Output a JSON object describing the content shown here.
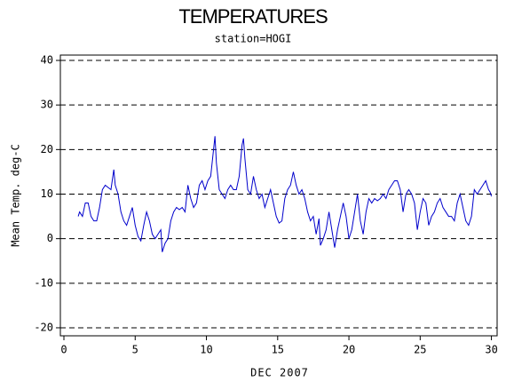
{
  "chart_data": {
    "type": "line",
    "title": "TEMPERATURES",
    "subtitle": "station=HOGI",
    "x_label": "DEC 2007",
    "y_label": "Mean Temp. deg-C",
    "xlim": [
      -0.25,
      30.4
    ],
    "xticks": [
      0,
      5,
      10,
      15,
      20,
      25,
      30
    ],
    "ylim": [
      -21.8,
      41.2
    ],
    "yticks": [
      -20,
      -10,
      0,
      10,
      20,
      30,
      40
    ],
    "grid": true,
    "series": [
      {
        "color": "#0000cc",
        "x": [
          1,
          1.1,
          1.3,
          1.5,
          1.7,
          1.9,
          2.1,
          2.3,
          2.5,
          2.7,
          2.9,
          3.1,
          3.3,
          3.5,
          3.6,
          3.8,
          4.0,
          4.2,
          4.4,
          4.6,
          4.8,
          5.0,
          5.2,
          5.4,
          5.6,
          5.8,
          6.0,
          6.2,
          6.4,
          6.6,
          6.8,
          6.9,
          7.1,
          7.3,
          7.5,
          7.7,
          7.9,
          8.1,
          8.3,
          8.5,
          8.7,
          8.9,
          9.1,
          9.3,
          9.5,
          9.7,
          9.9,
          10.1,
          10.3,
          10.5,
          10.6,
          10.7,
          10.9,
          11.1,
          11.3,
          11.5,
          11.7,
          11.9,
          12.1,
          12.3,
          12.5,
          12.6,
          12.7,
          12.9,
          13.1,
          13.3,
          13.5,
          13.7,
          13.9,
          14.1,
          14.3,
          14.5,
          14.7,
          14.9,
          15.1,
          15.3,
          15.5,
          15.7,
          15.9,
          16.1,
          16.3,
          16.5,
          16.7,
          16.9,
          17.1,
          17.3,
          17.5,
          17.7,
          17.9,
          18.0,
          18.2,
          18.4,
          18.6,
          18.8,
          19.0,
          19.2,
          19.4,
          19.6,
          19.8,
          20.0,
          20.2,
          20.4,
          20.6,
          20.8,
          21.0,
          21.2,
          21.4,
          21.6,
          21.8,
          22.0,
          22.2,
          22.4,
          22.6,
          22.8,
          23.0,
          23.2,
          23.4,
          23.6,
          23.8,
          24.0,
          24.2,
          24.4,
          24.6,
          24.8,
          25.0,
          25.2,
          25.4,
          25.6,
          25.8,
          26.0,
          26.2,
          26.4,
          26.6,
          26.8,
          27.0,
          27.2,
          27.4,
          27.6,
          27.8,
          28.0,
          28.2,
          28.4,
          28.6,
          28.8,
          29.0,
          29.2,
          29.4,
          29.6,
          29.8,
          29.9,
          30.0
        ],
        "values": [
          5,
          6,
          5,
          8,
          8,
          5,
          4,
          4,
          7,
          11,
          12,
          11.5,
          11,
          15.5,
          12,
          10,
          6,
          4,
          3,
          5,
          7,
          3,
          0.5,
          -0.5,
          3,
          6,
          4,
          1,
          0,
          1,
          2,
          -3,
          -1,
          0,
          4,
          6,
          7,
          6.5,
          7,
          6,
          12,
          9,
          7,
          8,
          12,
          13,
          11,
          13,
          14,
          20,
          23,
          17,
          11,
          10,
          9,
          11,
          12,
          11,
          11,
          14,
          21,
          22.5,
          18,
          11,
          10,
          14,
          11,
          9,
          10,
          7,
          9,
          11,
          8,
          5,
          3.5,
          4,
          9,
          11,
          12,
          15,
          12,
          10,
          11,
          9,
          6,
          4,
          5,
          1,
          4.5,
          -1.5,
          0,
          2,
          6,
          2,
          -2,
          2,
          5,
          8,
          5,
          0,
          2,
          6,
          10,
          4,
          1,
          6,
          9,
          8,
          9,
          8.5,
          9,
          10,
          9,
          11,
          12,
          13,
          13,
          11,
          6,
          10,
          11,
          10,
          8,
          2,
          6,
          9,
          8,
          3,
          5,
          6,
          8,
          9,
          7,
          6,
          5,
          5,
          4,
          8,
          10,
          7,
          4,
          3,
          5,
          11,
          10,
          11,
          12,
          13,
          11,
          10.5,
          9.5
        ]
      }
    ]
  }
}
